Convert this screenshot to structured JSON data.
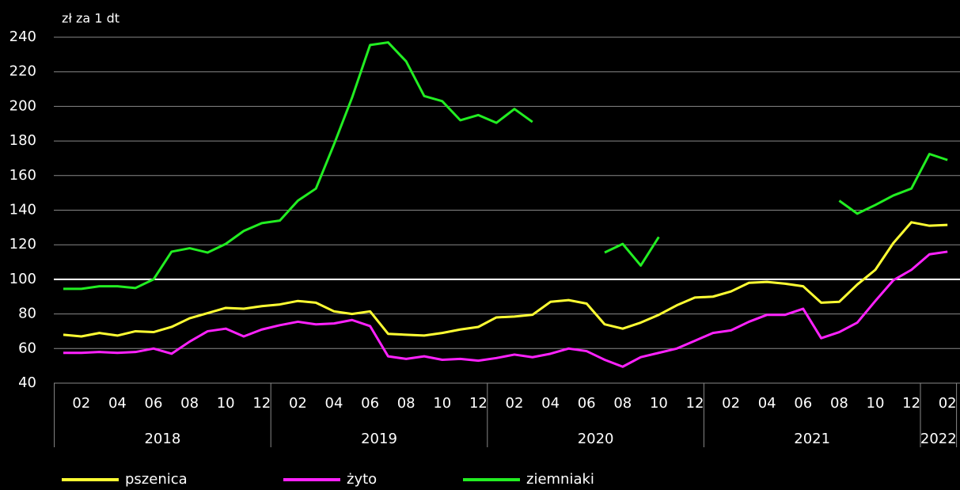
{
  "chart_data": {
    "type": "line",
    "y_axis_label": "zł za 1 dt",
    "categories": [
      null,
      "02",
      null,
      "04",
      null,
      "06",
      null,
      "08",
      null,
      "10",
      null,
      "12",
      null,
      "02",
      null,
      "04",
      null,
      "06",
      null,
      "08",
      null,
      "10",
      null,
      "12",
      null,
      "02",
      null,
      "04",
      null,
      "06",
      null,
      "08",
      null,
      "10",
      null,
      "12",
      null,
      "02",
      null,
      "04",
      null,
      "06",
      null,
      "08",
      null,
      "10",
      null,
      "12",
      null,
      "02"
    ],
    "year_groups": [
      {
        "label": "2018",
        "months": 12
      },
      {
        "label": "2019",
        "months": 12
      },
      {
        "label": "2020",
        "months": 12
      },
      {
        "label": "2021",
        "months": 12
      },
      {
        "label": "2022",
        "months": 2
      }
    ],
    "series": [
      {
        "name": "pszenica",
        "color": "#ffff33",
        "values": [
          68,
          67,
          69,
          67.5,
          70,
          69.5,
          72.5,
          77.5,
          80.5,
          83.5,
          83,
          84.5,
          85.5,
          87.5,
          86.5,
          81.5,
          80,
          81.5,
          68.5,
          68,
          67.5,
          69,
          71,
          72.5,
          78,
          78.5,
          79.5,
          87,
          88,
          86,
          74,
          71.5,
          75,
          79.5,
          85,
          89.5,
          90,
          93,
          98,
          98.5,
          97.5,
          96,
          86.5,
          87,
          97,
          105.5,
          121,
          133,
          131,
          131.5
        ]
      },
      {
        "name": "żyto",
        "color": "#ff22ff",
        "values": [
          57.5,
          57.5,
          58,
          57.5,
          58,
          60,
          57,
          64,
          70,
          71.5,
          67,
          71,
          73.5,
          75.5,
          74,
          74.5,
          76.5,
          73,
          55.5,
          54,
          55.5,
          53.5,
          54,
          53,
          54.5,
          56.5,
          55,
          57,
          60,
          58.5,
          53.5,
          49.5,
          55,
          57.5,
          60,
          64.5,
          69,
          70.5,
          75.5,
          79.5,
          79.5,
          83,
          66,
          69.5,
          75,
          87.5,
          99.5,
          105.5,
          114.5,
          116
        ]
      },
      {
        "name": "ziemniaki",
        "color": "#22ee22",
        "values": [
          94.5,
          94.5,
          96,
          96,
          95,
          100,
          116,
          118,
          115.5,
          120.5,
          128,
          132.5,
          134,
          145.5,
          152.5,
          178,
          205,
          235.5,
          237,
          226,
          206,
          203,
          192,
          195,
          190.5,
          198.5,
          191,
          null,
          null,
          null,
          115.5,
          120.5,
          108,
          124.5,
          null,
          null,
          null,
          null,
          null,
          null,
          null,
          null,
          null,
          145.5,
          138,
          143,
          148.5,
          152.5,
          172.5,
          169
        ]
      }
    ],
    "ylim": [
      40,
      240
    ],
    "yticks": [
      40,
      60,
      80,
      100,
      120,
      140,
      160,
      180,
      200,
      220,
      240
    ],
    "grid": true,
    "reference_line": {
      "value": 100,
      "color": "#ffffff"
    },
    "legend": "bottom"
  }
}
